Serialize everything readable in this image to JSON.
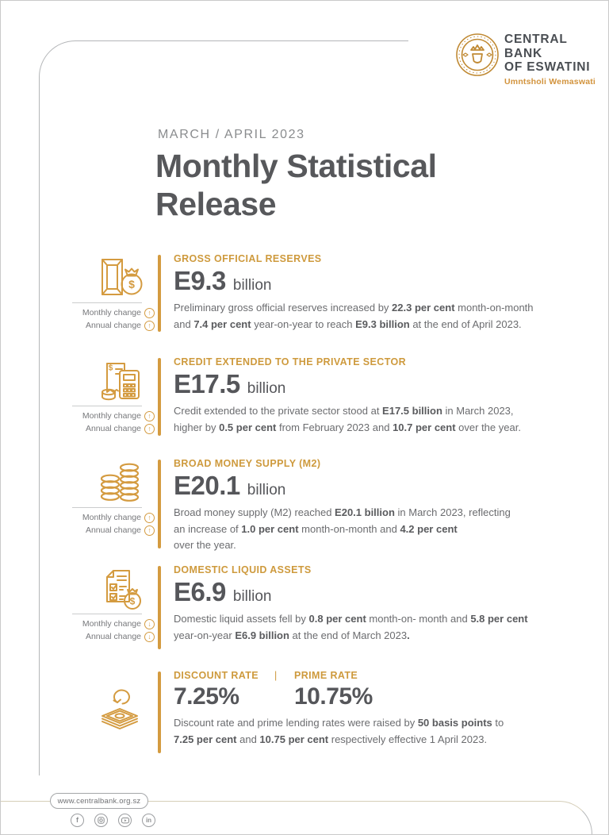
{
  "colors": {
    "accent": "#D49B40",
    "heading_gold": "#CE9A3D",
    "dark_text": "#55565A",
    "body_text": "#6B6C6F",
    "border_gray": "#B4B6B8"
  },
  "header": {
    "org_line1": "CENTRAL BANK",
    "org_line2": "OF ESWATINI",
    "org_subtitle": "Umntsholi Wemaswati",
    "seal_icon": "central-bank-seal"
  },
  "title": {
    "eyebrow": "MARCH / APRIL 2023",
    "heading": "Monthly Statistical Release"
  },
  "change_labels": {
    "monthly": "Monthly change",
    "annual": "Annual change"
  },
  "icons": [
    "money-bag-gold-bar",
    "receipt-calculator-coins",
    "coin-stacks",
    "checklist-money-bag",
    "banknotes-refresh"
  ],
  "sections": [
    {
      "heading": "GROSS OFFICIAL RESERVES",
      "value": "E9.3",
      "unit": "billion",
      "monthly_arrow": "↑",
      "annual_arrow": "↑",
      "body": [
        {
          "t": "Preliminary gross official reserves increased by "
        },
        {
          "t": "22.3 per cent",
          "b": true
        },
        {
          "t": " month-on-month"
        },
        {
          "br": true
        },
        {
          "t": "and "
        },
        {
          "t": "7.4 per cent",
          "b": true
        },
        {
          "t": " year-on-year to reach "
        },
        {
          "t": "E9.3 billion",
          "b": true
        },
        {
          "t": " at the end of April 2023."
        }
      ]
    },
    {
      "heading": "CREDIT EXTENDED TO THE PRIVATE SECTOR",
      "value": "E17.5",
      "unit": "billion",
      "monthly_arrow": "↑",
      "annual_arrow": "↑",
      "body": [
        {
          "t": "Credit extended to the private sector stood at "
        },
        {
          "t": "E17.5 billion",
          "b": true
        },
        {
          "t": " in March 2023,"
        },
        {
          "br": true
        },
        {
          "t": "higher by "
        },
        {
          "t": "0.5 per cent",
          "b": true
        },
        {
          "t": " from February 2023 and "
        },
        {
          "t": "10.7 per cent",
          "b": true
        },
        {
          "t": " over the year."
        }
      ]
    },
    {
      "heading": "BROAD MONEY SUPPLY (M2)",
      "value": "E20.1",
      "unit": "billion",
      "monthly_arrow": "↑",
      "annual_arrow": "↑",
      "body": [
        {
          "t": "Broad money supply (M2) reached "
        },
        {
          "t": "E20.1 billion",
          "b": true
        },
        {
          "t": " in March 2023, reflecting"
        },
        {
          "br": true
        },
        {
          "t": "an increase of "
        },
        {
          "t": "1.0 per cent",
          "b": true
        },
        {
          "t": " month-on-month and "
        },
        {
          "t": "4.2 per cent",
          "b": true
        },
        {
          "br": true
        },
        {
          "t": "over the year."
        }
      ]
    },
    {
      "heading": "DOMESTIC LIQUID ASSETS",
      "value": "E6.9",
      "unit": "billion",
      "monthly_arrow": "↓",
      "annual_arrow": "↓",
      "body": [
        {
          "t": "Domestic liquid assets fell by "
        },
        {
          "t": "0.8 per cent",
          "b": true
        },
        {
          "t": " month-on- month and "
        },
        {
          "t": "5.8 per cent",
          "b": true
        },
        {
          "br": true
        },
        {
          "t": "year-on-year "
        },
        {
          "t": "E6.9 billion",
          "b": true
        },
        {
          "t": " at the end of March 2023"
        },
        {
          "t": ".",
          "b": true
        }
      ]
    },
    {
      "heading": "DISCOUNT RATE",
      "heading2": "PRIME RATE",
      "separator": "|",
      "value": "7.25%",
      "value2": "10.75%",
      "body": [
        {
          "t": "Discount rate and prime lending rates were raised by "
        },
        {
          "t": "50 basis points",
          "b": true
        },
        {
          "t": " to"
        },
        {
          "br": true
        },
        {
          "t": "7.25 per cent",
          "b": true
        },
        {
          "t": " and "
        },
        {
          "t": "10.75 per cent",
          "b": true
        },
        {
          "t": " respectively effective 1 April 2023."
        }
      ]
    }
  ],
  "footer": {
    "website": "www.centralbank.org.sz",
    "social": {
      "facebook": "f",
      "linkedin": "in"
    },
    "social_icons": [
      "facebook-icon",
      "instagram-icon",
      "youtube-icon",
      "linkedin-icon"
    ]
  }
}
